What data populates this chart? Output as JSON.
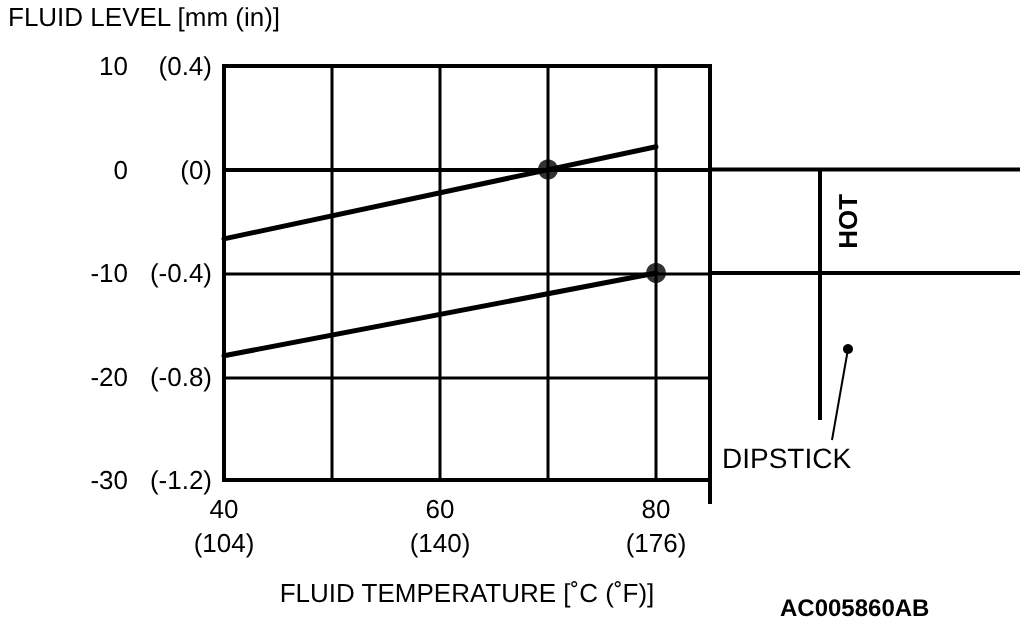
{
  "chart_data": {
    "type": "line",
    "xlabel": "FLUID TEMPERATURE [˚C (˚F)]",
    "ylabel": "FLUID LEVEL [mm (in)]",
    "xlim": [
      40,
      85
    ],
    "xticks": [
      40,
      {
        "value": 50,
        "label": null
      },
      60,
      {
        "value": 70,
        "label": null
      },
      80
    ],
    "x2lim": [
      104,
      185
    ],
    "x2ticks": [
      {
        "value": 104,
        "label": "(104)"
      },
      {
        "value": 140,
        "label": "(140)"
      },
      {
        "value": 176,
        "label": "(176)"
      }
    ],
    "ylim": [
      -30,
      10
    ],
    "yticks": [
      -30,
      -20,
      -10,
      0,
      10
    ],
    "y2lim": [
      -1.2,
      0.4
    ],
    "y2ticks": [
      {
        "value": -1.2,
        "label": "(-1.2)"
      },
      {
        "value": -0.8,
        "label": "(-0.8)"
      },
      {
        "value": -0.4,
        "label": "(-0.4)"
      },
      {
        "value": 0,
        "label": "(0)"
      },
      {
        "value": 0.4,
        "label": "(0.4)"
      }
    ],
    "grid": true,
    "marker": "none",
    "line_style": "solid",
    "series": [
      {
        "color": "#000000",
        "x": [
          40,
          80
        ],
        "values": [
          -6.7,
          2.2
        ]
      },
      {
        "color": "#000000",
        "x": [
          40,
          80
        ],
        "values": [
          -18,
          -10
        ]
      },
      {
        "type": "scatter",
        "marker": "circle",
        "color": "#000000",
        "x": [
          70,
          80
        ],
        "values": [
          0,
          -10
        ]
      }
    ],
    "annotations": [
      "HOT",
      "DIPSTICK",
      "AC005860AB"
    ]
  }
}
